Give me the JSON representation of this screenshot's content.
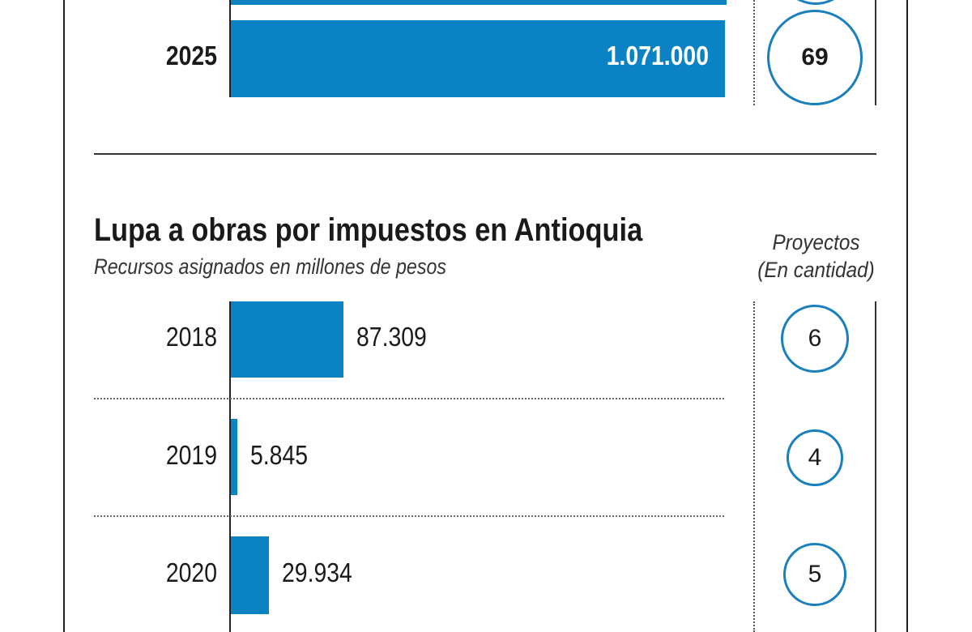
{
  "chart_data": {
    "type": "bar",
    "title": "Lupa a obras por impuestos en Antioquia",
    "subtitle": "Recursos asignados en millones de pesos",
    "side_column_header": [
      "Proyectos",
      "(En cantidad)"
    ],
    "categories": [
      "2018",
      "2019",
      "2020",
      "2025"
    ],
    "values": [
      87309,
      5845,
      29934,
      1071000
    ],
    "value_labels": [
      "87.309",
      "5.845",
      "29.934",
      "1.071.000"
    ],
    "projects": [
      6,
      4,
      5,
      69
    ],
    "project_labels": [
      "6",
      "4",
      "5",
      "69"
    ],
    "bar_color": "#0a82c4",
    "circle_color": "#1a7fbd"
  }
}
